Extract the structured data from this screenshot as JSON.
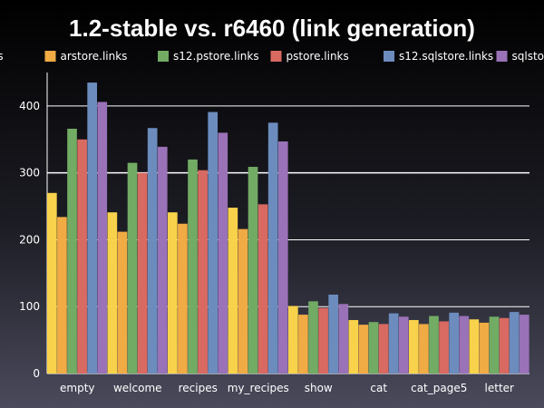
{
  "chart_data": {
    "type": "bar",
    "title": "1.2-stable vs. r6460 (link generation)",
    "xlabel": "",
    "ylabel": "",
    "ylim": [
      0,
      450
    ],
    "yticks": [
      0,
      100,
      200,
      300,
      400
    ],
    "grid": true,
    "legend_position": "top",
    "categories": [
      "empty",
      "welcome",
      "recipes",
      "my_recipes",
      "show",
      "cat",
      "cat_page5",
      "letter"
    ],
    "series": [
      {
        "name": "store.links",
        "color": "#f8d24a",
        "values": [
          270,
          241,
          241,
          248,
          101,
          80,
          80,
          81
        ]
      },
      {
        "name": "arstore.links",
        "color": "#f0ab44",
        "values": [
          234,
          212,
          224,
          216,
          88,
          73,
          74,
          76
        ]
      },
      {
        "name": "s12.pstore.links",
        "color": "#72ab64",
        "values": [
          366,
          315,
          320,
          309,
          108,
          77,
          86,
          85
        ]
      },
      {
        "name": "pstore.links",
        "color": "#d86a62",
        "values": [
          350,
          300,
          304,
          253,
          98,
          74,
          78,
          83
        ]
      },
      {
        "name": "s12.sqlstore.links",
        "color": "#6c8cbe",
        "values": [
          435,
          367,
          391,
          375,
          118,
          90,
          91,
          92
        ]
      },
      {
        "name": "sqlstore.links",
        "color": "#9a72b8",
        "values": [
          406,
          339,
          360,
          347,
          104,
          85,
          86,
          88
        ]
      }
    ]
  }
}
